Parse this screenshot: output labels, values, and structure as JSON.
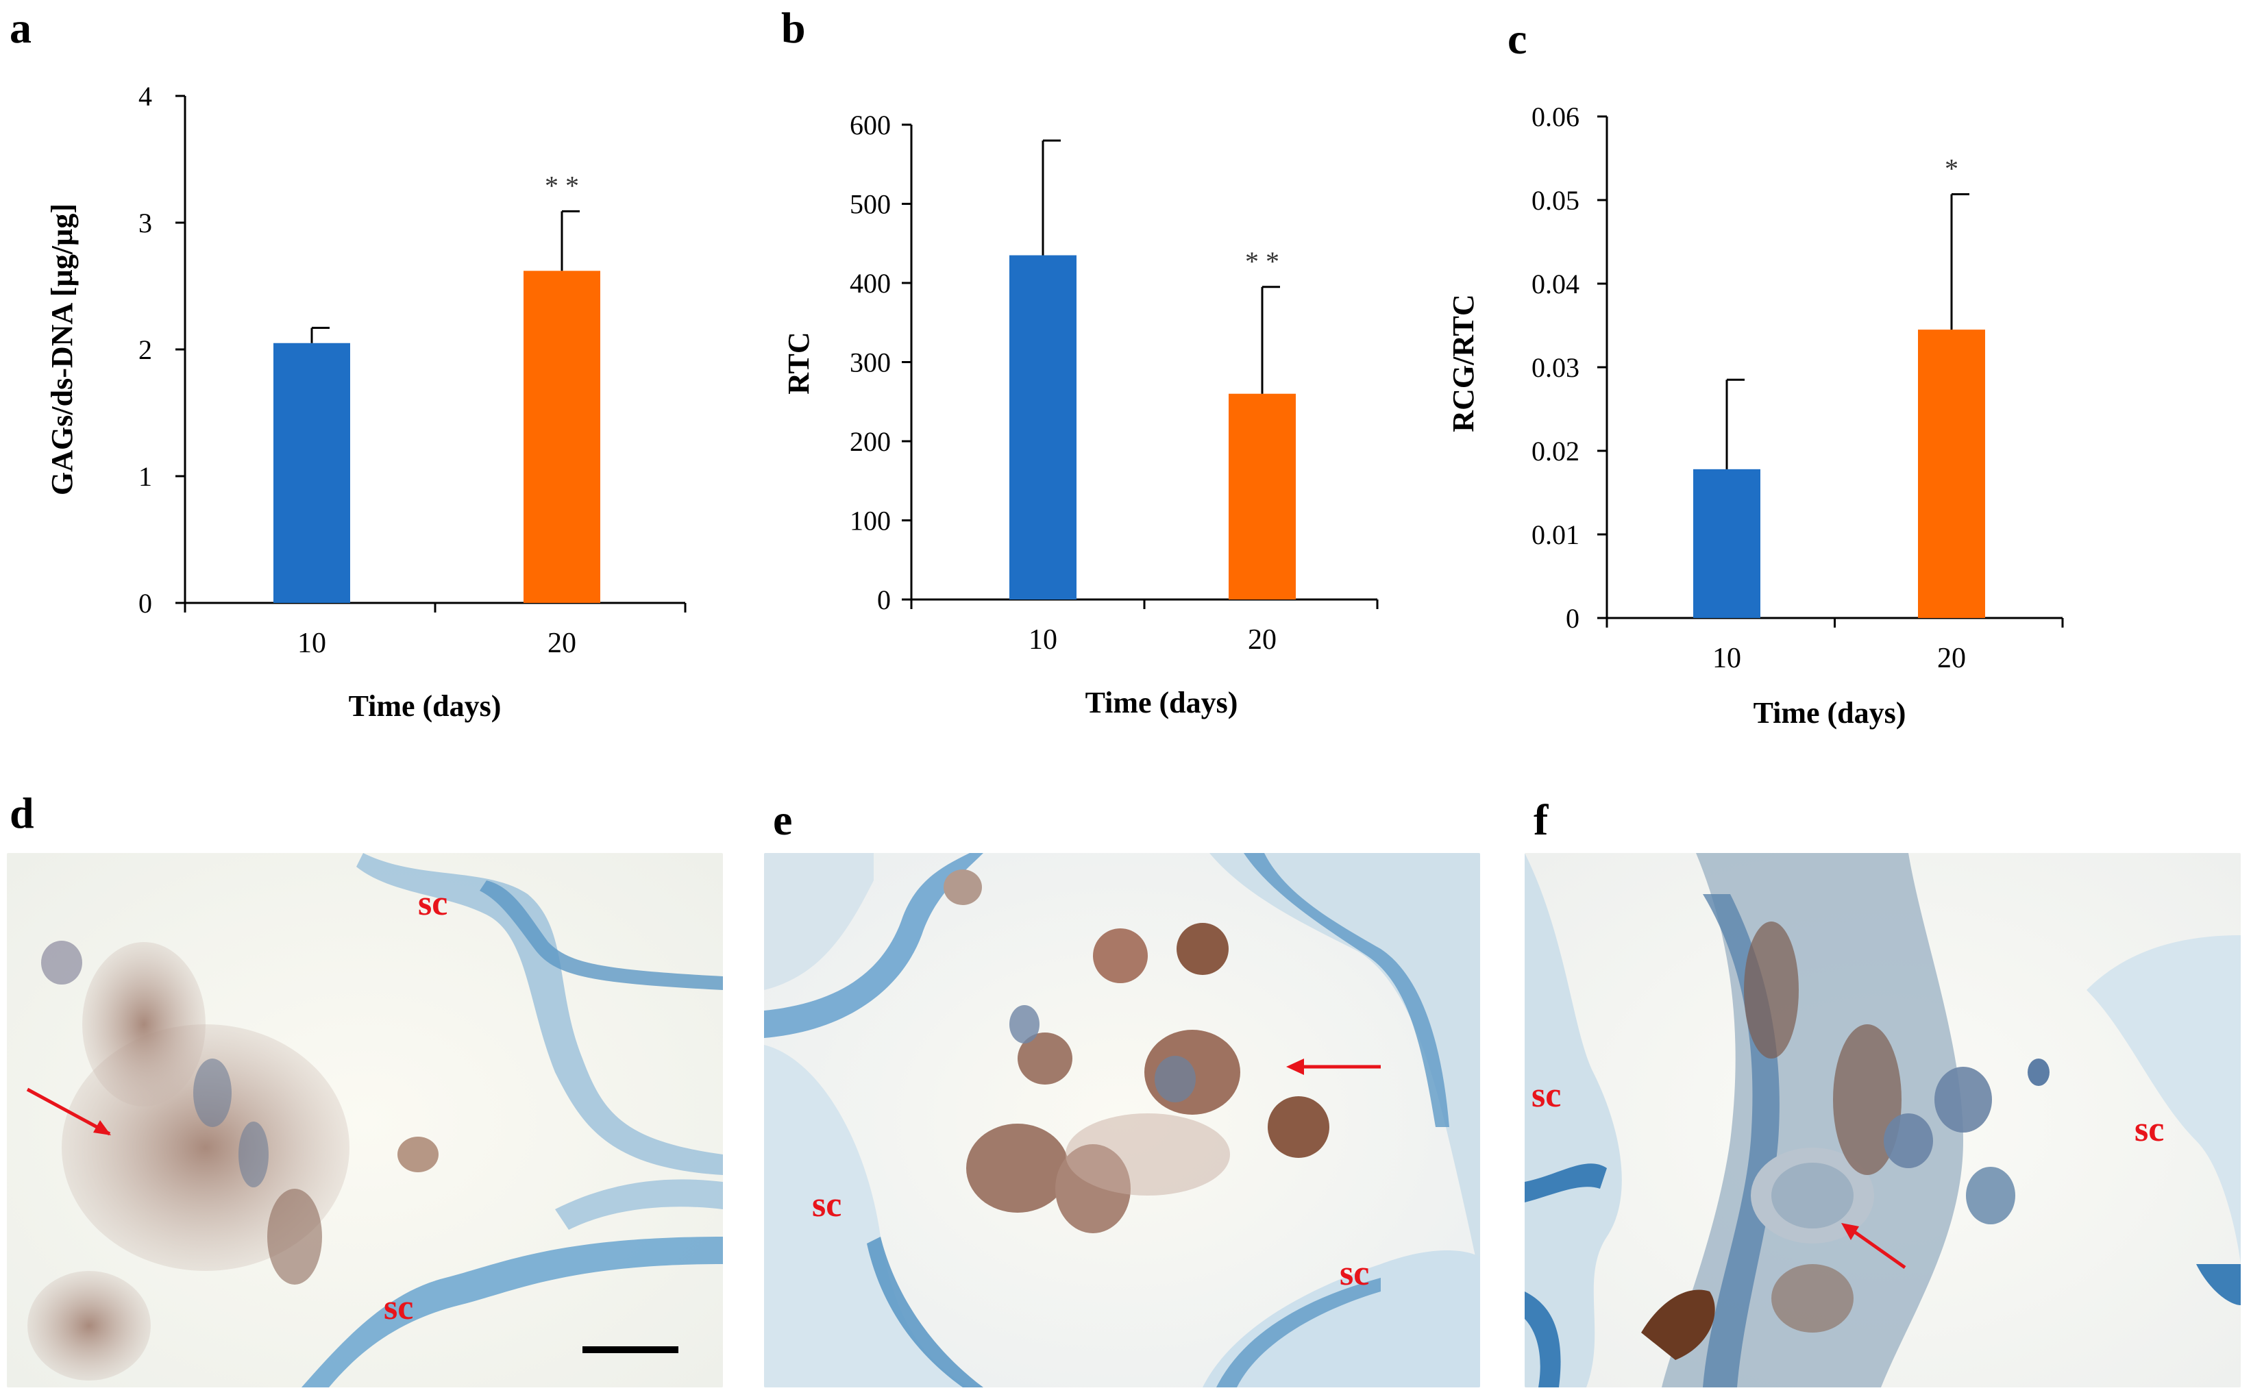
{
  "panels": {
    "a": "a",
    "b": "b",
    "c": "c",
    "d": "d",
    "e": "e",
    "f": "f"
  },
  "colors": {
    "day10": "#1f6fc5",
    "day20": "#ff6a00",
    "label_red": "#e8141b"
  },
  "chart_data": [
    {
      "type": "bar",
      "categories": [
        "10",
        "20"
      ],
      "values": [
        2.05,
        2.62
      ],
      "errors": [
        0.12,
        0.47
      ],
      "annotations": [
        "",
        "* *"
      ],
      "xlabel": "Time (days)",
      "ylabel": "GAGs/ds-DNA [µg/µg]",
      "ylim": [
        0,
        4
      ],
      "yticks": [
        "0",
        "1",
        "2",
        "3",
        "4"
      ],
      "grid": false
    },
    {
      "type": "bar",
      "categories": [
        "10",
        "20"
      ],
      "values": [
        435,
        260
      ],
      "errors": [
        145,
        135
      ],
      "annotations": [
        "",
        "* *"
      ],
      "xlabel": "Time (days)",
      "ylabel": "RTC",
      "ylim": [
        0,
        600
      ],
      "yticks": [
        "0",
        "100",
        "200",
        "300",
        "400",
        "500",
        "600"
      ],
      "grid": false
    },
    {
      "type": "bar",
      "categories": [
        "10",
        "20"
      ],
      "values": [
        0.0178,
        0.0345
      ],
      "errors": [
        0.0107,
        0.0162
      ],
      "annotations": [
        "",
        "*"
      ],
      "xlabel": "Time (days)",
      "ylabel": "RCG/RTC",
      "ylim": [
        0,
        0.06
      ],
      "yticks": [
        "0",
        "0.01",
        "0.02",
        "0.03",
        "0.04",
        "0.05",
        "0.06"
      ],
      "grid": false
    }
  ],
  "micrographs": {
    "d": {
      "labels": [
        "sc",
        "sc"
      ]
    },
    "e": {
      "labels": [
        "sc",
        "sc"
      ]
    },
    "f": {
      "labels": [
        "sc",
        "sc"
      ]
    }
  }
}
